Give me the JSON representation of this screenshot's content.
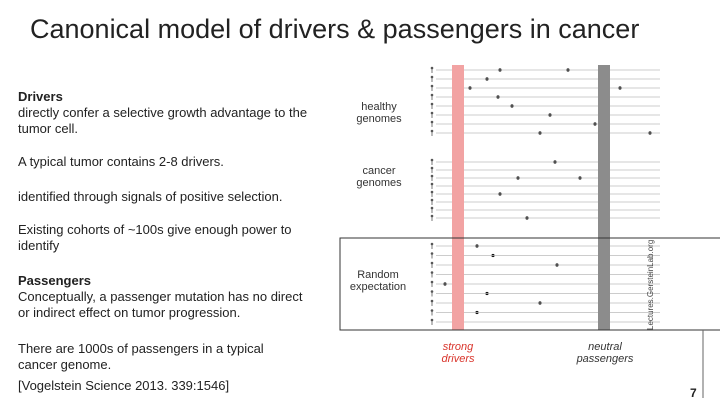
{
  "header": {
    "title": "Canonical model of drivers & passengers in cancer"
  },
  "left": {
    "drivers_heading": "Drivers",
    "drivers_text": "directly confer a selective growth advantage to the tumor cell.",
    "driver_count": "A typical tumor contains 2-8 drivers.",
    "identified": "identified through signals of positive selection.",
    "cohorts": "Existing cohorts of ~100s give enough power to identify",
    "passengers_heading": "Passengers",
    "passengers_text": "Conceptually, a passenger mutation has no direct or indirect effect on tumor progression.",
    "passenger_count": "There are 1000s of passengers in a typical cancer genome.",
    "citation": "[Vogelstein Science 2013. 339:1546]"
  },
  "diagram": {
    "healthy": "healthy genomes",
    "cancer": "cancer genomes",
    "random": "Random expectation",
    "drivers": "strong drivers",
    "passengers": "neutral passengers"
  },
  "footer": {
    "site": "Lectures.GersteinLab.org",
    "page": "7"
  }
}
